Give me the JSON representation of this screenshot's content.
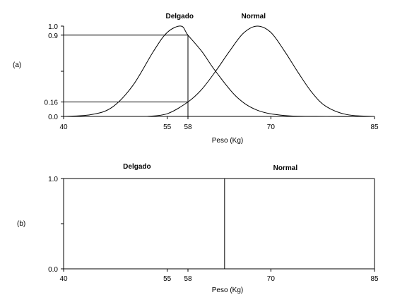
{
  "chart_data": [
    {
      "type": "line",
      "panel_label": "(a)",
      "xlabel": "Peso (Kg)",
      "xlim": [
        40,
        85
      ],
      "ylim": [
        0,
        1
      ],
      "x_ticks": [
        40,
        55,
        58,
        70,
        85
      ],
      "y_ticks": [
        "0.0",
        "0.16",
        "0.9",
        "1.0"
      ],
      "series": [
        {
          "name": "Delgado",
          "x": [
            40,
            44,
            47,
            50,
            53,
            55,
            57,
            58,
            60,
            62,
            65,
            68,
            72,
            78,
            85
          ],
          "y": [
            0.0,
            0.02,
            0.1,
            0.34,
            0.72,
            0.93,
            1.0,
            0.9,
            0.72,
            0.5,
            0.22,
            0.07,
            0.01,
            0.0,
            0.0
          ]
        },
        {
          "name": "Normal",
          "x": [
            52,
            55,
            58,
            60,
            62,
            64,
            66,
            68,
            70,
            72,
            74,
            76,
            78,
            81,
            85
          ],
          "y": [
            0.0,
            0.03,
            0.16,
            0.3,
            0.5,
            0.72,
            0.92,
            1.0,
            0.93,
            0.72,
            0.48,
            0.26,
            0.11,
            0.02,
            0.0
          ]
        }
      ],
      "reference_lines": [
        {
          "x": 58,
          "y": 0.9
        },
        {
          "x": 58,
          "y": 0.16
        }
      ]
    },
    {
      "type": "line",
      "panel_label": "(b)",
      "xlabel": "Peso (Kg)",
      "xlim": [
        40,
        85
      ],
      "ylim": [
        0,
        1
      ],
      "x_ticks": [
        40,
        55,
        58,
        70,
        85
      ],
      "y_ticks": [
        "0.0",
        "1.0"
      ],
      "series": [
        {
          "name": "Delgado",
          "x": [
            40,
            63.3
          ],
          "y": [
            1,
            1
          ]
        },
        {
          "name": "Normal",
          "x": [
            63.3,
            85
          ],
          "y": [
            1,
            1
          ]
        }
      ],
      "boundary_x": 63.3
    }
  ]
}
